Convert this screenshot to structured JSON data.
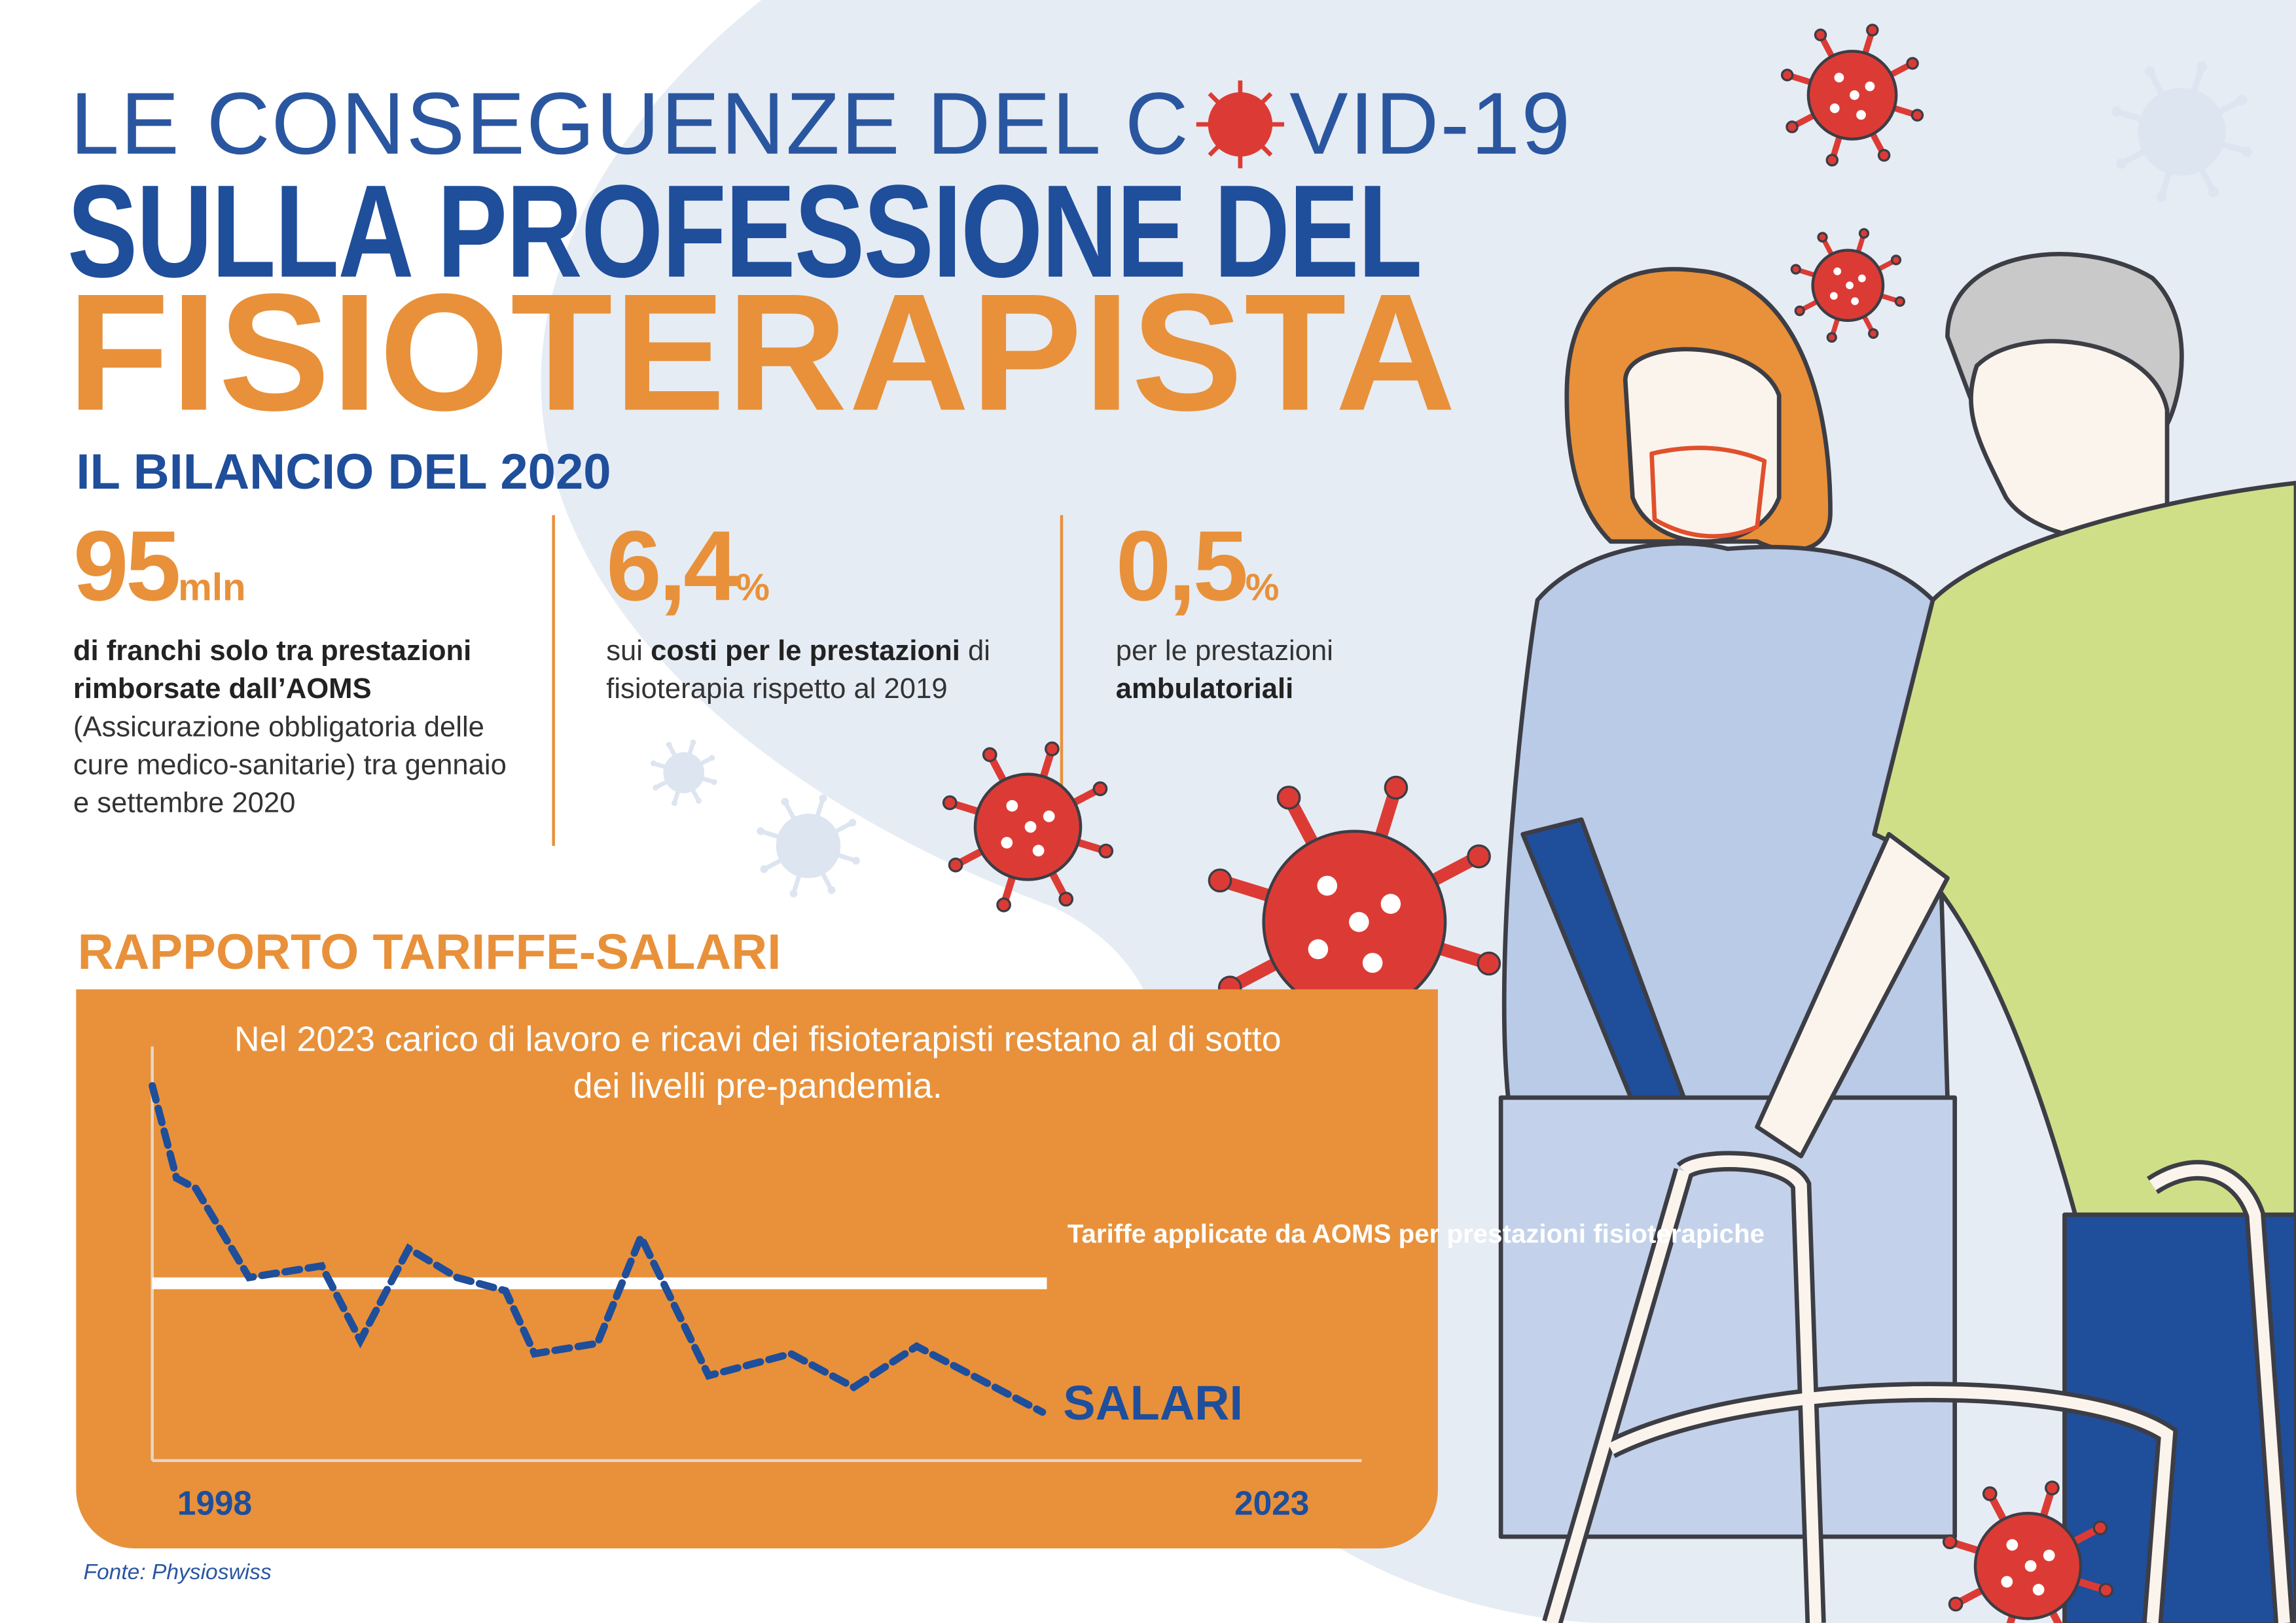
{
  "header": {
    "title_line1_part1": "LE CONSEGUENZE DEL C",
    "title_line1_part2": "VID-19",
    "title_line2": "SULLA PROFESSIONE DEL",
    "title_line3": "FISIOTERAPISTA"
  },
  "bilancio": {
    "heading": "IL BILANCIO DEL 2020",
    "stats": [
      {
        "value": "95",
        "unit": "mln",
        "desc_bold": "di franchi solo tra prestazioni rimborsate dall’AOMS",
        "desc_rest": " (Assicurazione obbligatoria delle cure medico-sanitarie) tra gennaio e settembre 2020"
      },
      {
        "value": "6,4",
        "unit": "%",
        "desc_pre": "sui ",
        "desc_bold": "costi per le prestazioni",
        "desc_rest": " di fisioterapia rispetto al 2019"
      },
      {
        "value": "0,5",
        "unit": "%",
        "desc_pre": "per le prestazioni ",
        "desc_bold": "ambulatoriali"
      }
    ]
  },
  "rapporto": {
    "heading": "RAPPORTO TARIFFE-SALARI",
    "subtitle": "Nel 2023 carico di lavoro e ricavi dei fisioterapisti restano al di sotto dei livelli pre-pandemia."
  },
  "chart_data": {
    "type": "line",
    "x_start_label": "1998",
    "x_end_label": "2023",
    "xlim": [
      1998,
      2023
    ],
    "ylim": [
      0,
      100
    ],
    "grid": false,
    "series": [
      {
        "name": "SALARI",
        "style": "dashed",
        "color": "#1f4e9b",
        "x": [
          1998.0,
          1998.5,
          1998.9,
          2000.0,
          2001.5,
          2002.3,
          2003.3,
          2004.3,
          2005.3,
          2005.9,
          2007.2,
          2008.1,
          2009.5,
          2011.2,
          2012.5,
          2013.8,
          2016.4
        ],
        "y": [
          90.5,
          68.2,
          65.7,
          44.2,
          47,
          29,
          51.2,
          44.2,
          41,
          25.8,
          28.3,
          54,
          20.5,
          25.8,
          17.7,
          27.6,
          11.7
        ]
      },
      {
        "name": "Tariffe applicate da AOMS per prestazioni fisioterapiche",
        "style": "solid",
        "color": "#ffffff",
        "x": [
          1998.0,
          2016.4
        ],
        "y": [
          42.8,
          42.8
        ]
      }
    ]
  },
  "source": "Fonte: Physioswiss",
  "colors": {
    "blue": "#1f4e9b",
    "orange": "#e8913a",
    "virus_red": "#dc3b35",
    "bg_blue": "#e6ecf4"
  },
  "icons": [
    "virus-icon",
    "nurse-illustration",
    "elderly-man-illustration",
    "walker-illustration"
  ]
}
